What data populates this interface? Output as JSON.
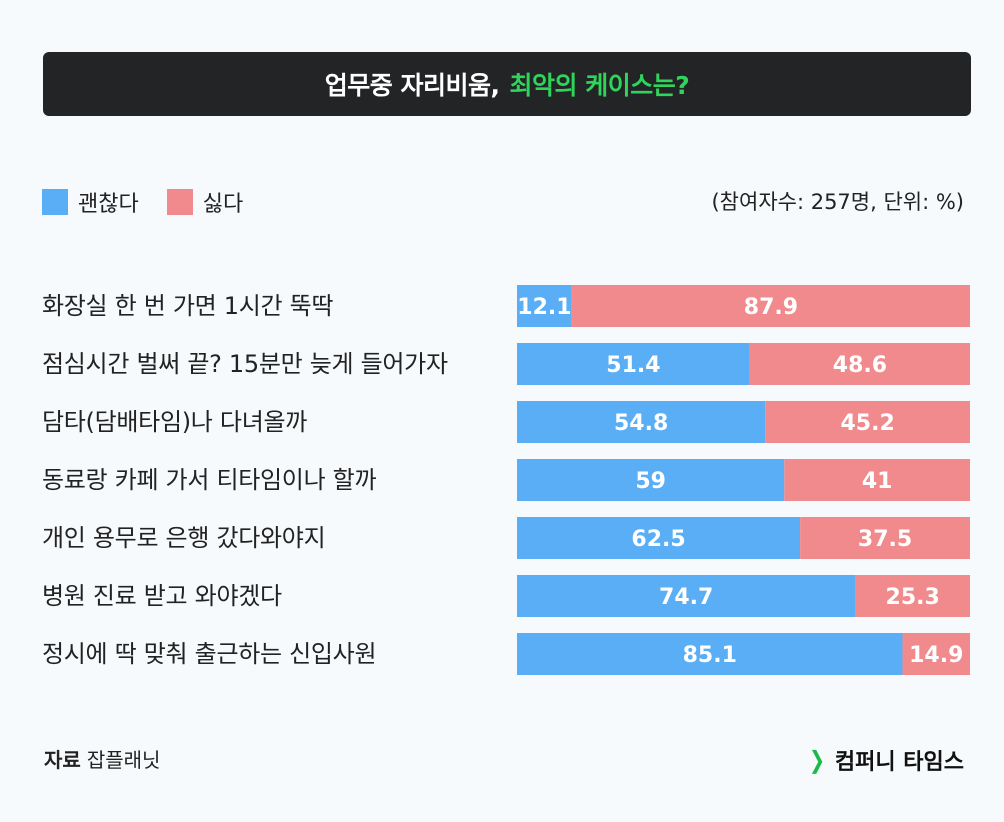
{
  "title": {
    "main": "업무중 자리비움,",
    "highlight": "최악의 케이스는?"
  },
  "legend": [
    {
      "label": "괜찮다",
      "color": "#5aaef5"
    },
    {
      "label": "싫다",
      "color": "#f08a8c"
    }
  ],
  "note": "(참여자수: 257명, 단위: %)",
  "chart_data": {
    "type": "bar",
    "orientation": "horizontal",
    "stacked": true,
    "categories": [
      "화장실 한 번 가면 1시간 뚝딱",
      "점심시간 벌써 끝? 15분만 늦게 들어가자",
      "담타(담배타임)나 다녀올까",
      "동료랑 카페 가서 티타임이나 할까",
      "개인 용무로 은행 갔다와야지",
      "병원 진료 받고 와야겠다",
      "정시에 딱 맞춰 출근하는 신입사원"
    ],
    "series": [
      {
        "name": "괜찮다",
        "values": [
          12.1,
          51.4,
          54.8,
          59,
          62.5,
          74.7,
          85.1
        ],
        "labels": [
          "12.1",
          "51.4",
          "54.8",
          "59",
          "62.5",
          "74.7",
          "85.1"
        ]
      },
      {
        "name": "싫다",
        "values": [
          87.9,
          48.6,
          45.2,
          41,
          37.5,
          25.3,
          14.9
        ],
        "labels": [
          "87.9",
          "48.6",
          "45.2",
          "41",
          "37.5",
          "25.3",
          "14.9"
        ]
      }
    ],
    "xlim": [
      0,
      100
    ],
    "legend": "top-left"
  },
  "source": {
    "label": "자료",
    "value": "잡플래닛"
  },
  "brand": {
    "mark": "❯",
    "name": "컴퍼니 타임스"
  }
}
